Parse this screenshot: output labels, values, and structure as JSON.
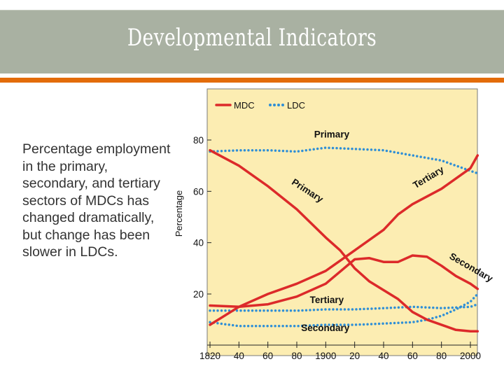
{
  "slide": {
    "title": "Developmental Indicators",
    "body": "Percentage employment in the primary, secondary, and tertiary sectors of MDCs has changed dramatically, but change has been slower in LDCs."
  },
  "colors": {
    "title_band": "#a9b1a2",
    "accent": "#e36c0a",
    "plot_background": "#fcedb2",
    "mdc": "#dc2a2a",
    "ldc": "#2f8fd6"
  },
  "chart_data": {
    "type": "line",
    "ylabel": "Percentage",
    "xlim": [
      1820,
      2010
    ],
    "ylim": [
      2,
      92
    ],
    "grid": false,
    "legend_position": "top-left",
    "x_ticks": [
      1820,
      1840,
      1860,
      1880,
      1900,
      1920,
      1940,
      1960,
      1980,
      2000
    ],
    "x_tick_labels": [
      "1820",
      "40",
      "60",
      "80",
      "1900",
      "20",
      "40",
      "60",
      "80",
      "2000"
    ],
    "y_ticks": [
      20,
      40,
      60,
      80
    ],
    "y_tick_labels": [
      "20",
      "40",
      "60",
      "80"
    ],
    "legend": [
      {
        "label": "MDC",
        "style": "solid"
      },
      {
        "label": "LDC",
        "style": "dotted"
      }
    ],
    "series": [
      {
        "name": "MDC",
        "group": "MDC",
        "sector": "Primary",
        "style": "solid",
        "x": [
          1820,
          1840,
          1860,
          1880,
          1900,
          1910,
          1920,
          1930,
          1950,
          1960,
          1970,
          1990,
          2000,
          2005
        ],
        "y": [
          76,
          70,
          62,
          53,
          42,
          37,
          30,
          25,
          18,
          13,
          10,
          6,
          5.5,
          5.5
        ]
      },
      {
        "name": "MDC",
        "group": "MDC",
        "sector": "Secondary",
        "style": "solid",
        "x": [
          1820,
          1840,
          1860,
          1880,
          1900,
          1920,
          1930,
          1940,
          1950,
          1960,
          1970,
          1980,
          1990,
          2000,
          2005
        ],
        "y": [
          15.5,
          15,
          16,
          19,
          24,
          33.5,
          34,
          32.5,
          32.5,
          35,
          34.5,
          31,
          27,
          24,
          22
        ]
      },
      {
        "name": "MDC",
        "group": "MDC",
        "sector": "Tertiary",
        "style": "solid",
        "x": [
          1820,
          1840,
          1860,
          1880,
          1900,
          1920,
          1940,
          1950,
          1960,
          1980,
          2000,
          2005
        ],
        "y": [
          8,
          15,
          20,
          24,
          29,
          37,
          45,
          51,
          55,
          61,
          69,
          74
        ]
      },
      {
        "name": "LDC",
        "group": "LDC",
        "sector": "Primary",
        "style": "dotted",
        "x": [
          1820,
          1840,
          1860,
          1880,
          1900,
          1920,
          1940,
          1960,
          1980,
          2000,
          2005
        ],
        "y": [
          75.5,
          76,
          76,
          75.5,
          77,
          76.5,
          76,
          74,
          72,
          68,
          67
        ]
      },
      {
        "name": "LDC",
        "group": "LDC",
        "sector": "Secondary",
        "style": "dotted",
        "x": [
          1820,
          1840,
          1860,
          1880,
          1900,
          1920,
          1940,
          1960,
          1970,
          1980,
          1990,
          2000,
          2005
        ],
        "y": [
          9,
          7.5,
          7.5,
          7.5,
          8,
          8,
          8.5,
          9,
          10,
          11.5,
          14,
          17,
          20
        ]
      },
      {
        "name": "LDC",
        "group": "LDC",
        "sector": "Tertiary",
        "style": "dotted",
        "x": [
          1820,
          1840,
          1860,
          1880,
          1900,
          1920,
          1940,
          1960,
          1980,
          2000,
          2005
        ],
        "y": [
          13.5,
          13.5,
          13.5,
          13.5,
          14,
          14,
          14.5,
          15,
          14.5,
          15,
          16
        ]
      }
    ],
    "annotations": [
      {
        "text": "Primary",
        "x": 1892,
        "y": 81,
        "rotation": 0
      },
      {
        "text": "Primary",
        "x": 1876,
        "y": 63,
        "rotation": 33
      },
      {
        "text": "Tertiary",
        "x": 1962,
        "y": 61,
        "rotation": -31
      },
      {
        "text": "Secondary",
        "x": 1985,
        "y": 34,
        "rotation": 30
      },
      {
        "text": "Tertiary",
        "x": 1889,
        "y": 16.5,
        "rotation": 0
      },
      {
        "text": "Secondary",
        "x": 1883,
        "y": 5.5,
        "rotation": 0
      }
    ]
  }
}
